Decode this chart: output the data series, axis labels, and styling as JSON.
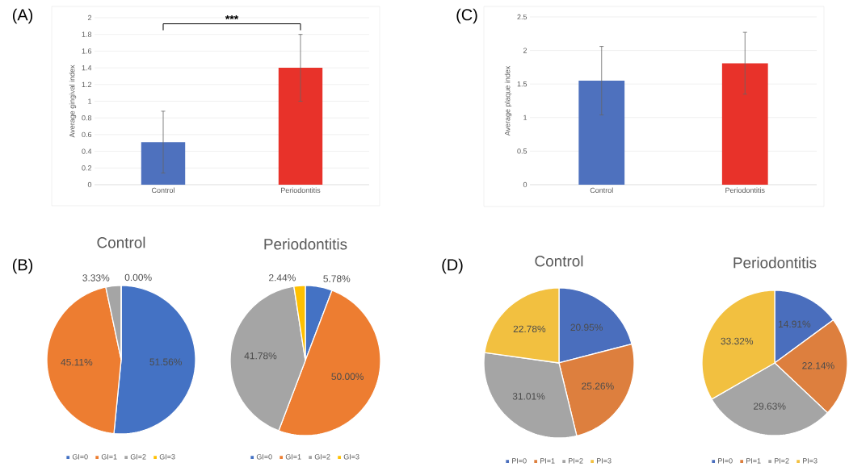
{
  "chart_data": [
    {
      "type": "bar",
      "ylabel": "Average gingival index",
      "categories": [
        "Control",
        "Periodontitis"
      ],
      "values": [
        0.51,
        1.4
      ],
      "errors": [
        0.37,
        0.4
      ],
      "colors": [
        "#4e71be",
        "#e8322a"
      ],
      "ylim": [
        0,
        2
      ],
      "yticks": [
        0,
        0.2,
        0.4,
        0.6,
        0.8,
        1,
        1.2,
        1.4,
        1.6,
        1.8,
        2
      ],
      "grid": "y",
      "legend": false,
      "annotations": [
        "(A)",
        "***"
      ]
    },
    {
      "type": "bar",
      "ylabel": "Average plaque index",
      "categories": [
        "Control",
        "Periodontitis"
      ],
      "values": [
        1.55,
        1.81
      ],
      "errors": [
        0.51,
        0.46
      ],
      "colors": [
        "#4e71be",
        "#e8322a"
      ],
      "ylim": [
        0,
        2.5
      ],
      "yticks": [
        0,
        0.5,
        1,
        1.5,
        2,
        2.5
      ],
      "grid": "y",
      "legend": false,
      "annotations": [
        "(C)"
      ]
    },
    {
      "type": "pie",
      "title": "Control",
      "categories": [
        "GI=0",
        "GI=1",
        "GI=2",
        "GI=3"
      ],
      "values": [
        51.56,
        45.11,
        3.33,
        0.0
      ],
      "value_labels": [
        "51.56%",
        "45.11%",
        "3.33%",
        "0.00%"
      ],
      "colors": [
        "#4472c4",
        "#ed7d31",
        "#a5a5a5",
        "#ffc000"
      ],
      "legend": "bottom",
      "annotations": [
        "(B)"
      ]
    },
    {
      "type": "pie",
      "title": "Periodontitis",
      "categories": [
        "GI=0",
        "GI=1",
        "GI=2",
        "GI=3"
      ],
      "values": [
        5.78,
        50.0,
        41.78,
        2.44
      ],
      "value_labels": [
        "5.78%",
        "50.00%",
        "41.78%",
        "2.44%"
      ],
      "colors": [
        "#4472c4",
        "#ed7d31",
        "#a5a5a5",
        "#ffc000"
      ],
      "legend": "bottom"
    },
    {
      "type": "pie",
      "title": "Control",
      "categories": [
        "PI=0",
        "PI=1",
        "PI=2",
        "PI=3"
      ],
      "values": [
        20.95,
        25.26,
        31.01,
        22.78
      ],
      "value_labels": [
        "20.95%",
        "25.26%",
        "31.01%",
        "22.78%"
      ],
      "colors": [
        "#4a6ebd",
        "#dd7f3e",
        "#a5a5a5",
        "#f2c040"
      ],
      "legend": "bottom",
      "annotations": [
        "(D)"
      ]
    },
    {
      "type": "pie",
      "title": "Periodontitis",
      "categories": [
        "PI=0",
        "PI=1",
        "PI=2",
        "PI=3"
      ],
      "values": [
        14.91,
        22.14,
        29.63,
        33.32
      ],
      "value_labels": [
        "14.91%",
        "22.14%",
        "29.63%",
        "33.32%"
      ],
      "colors": [
        "#4a6ebd",
        "#dd7f3e",
        "#a5a5a5",
        "#f2c040"
      ],
      "legend": "bottom"
    }
  ]
}
